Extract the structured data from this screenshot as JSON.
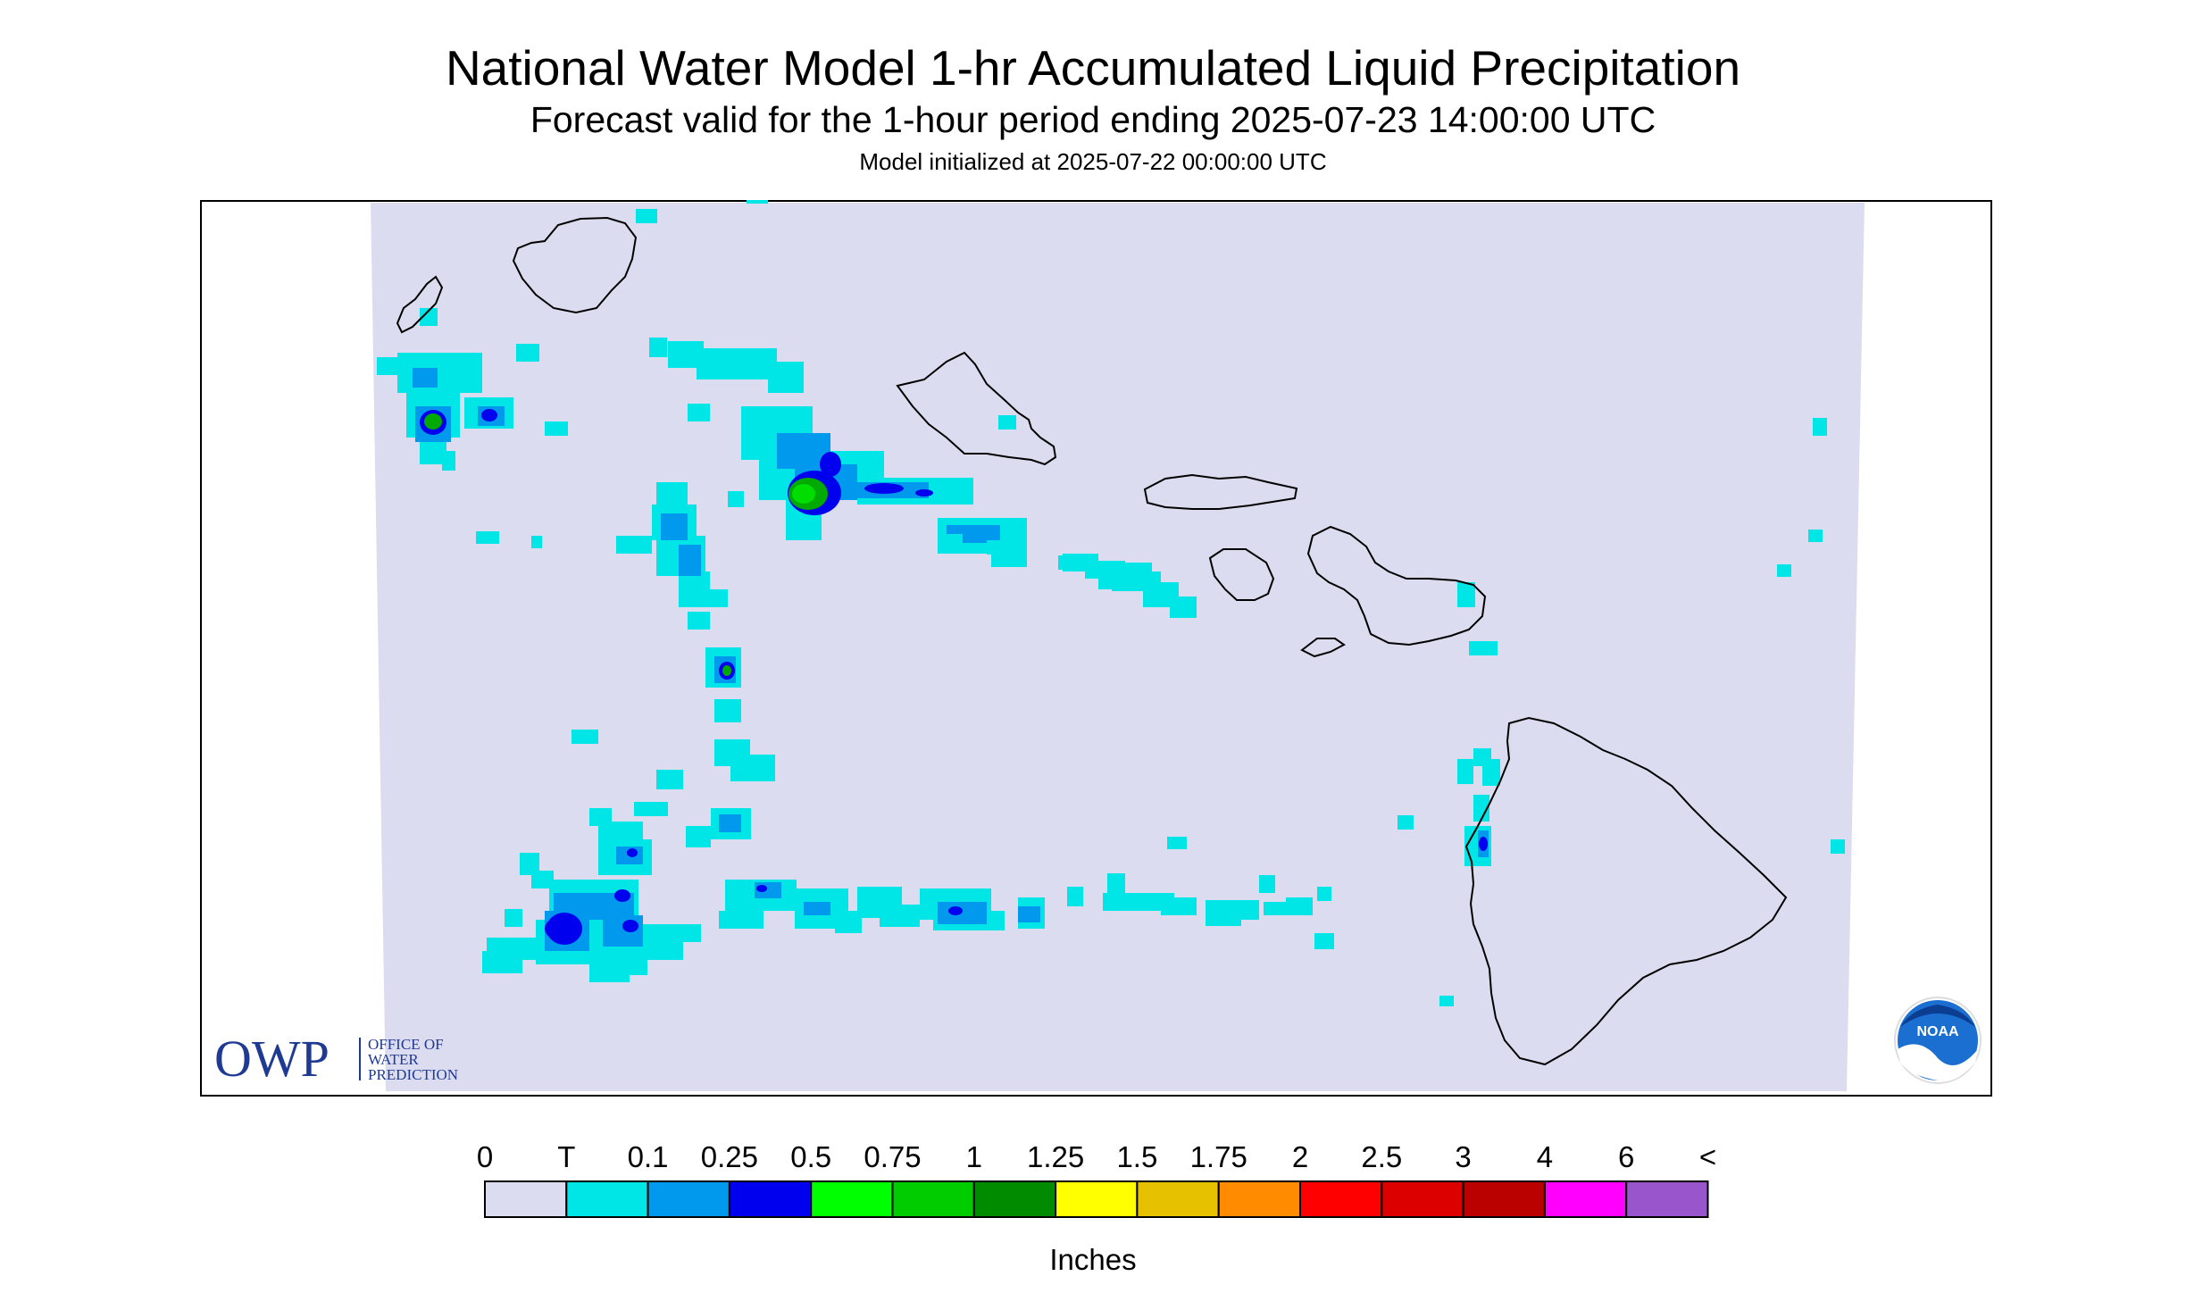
{
  "header": {
    "title": "National Water Model 1-hr Accumulated Liquid Precipitation",
    "subtitle": "Forecast valid for the 1-hour period ending 2025-07-23 14:00:00 UTC",
    "init": "Model initialized at 2025-07-22 00:00:00 UTC"
  },
  "map": {
    "region": "Hawaiian Islands",
    "background_color": "#dcdcf0",
    "coastline_color": "#000000"
  },
  "logos": {
    "owp_letters": "OWP",
    "owp_text": [
      "OFFICE OF",
      "WATER",
      "PREDICTION"
    ],
    "noaa_text": "NOAA"
  },
  "legend": {
    "labels": [
      "0",
      "T",
      "0.1",
      "0.25",
      "0.5",
      "0.75",
      "1",
      "1.25",
      "1.5",
      "1.75",
      "2",
      "2.5",
      "3",
      "4",
      "6",
      "<"
    ],
    "colors": [
      "#dcdcf0",
      "#00e5e5",
      "#0099ee",
      "#0000ee",
      "#00ff00",
      "#00cc00",
      "#008b00",
      "#ffff00",
      "#e5c100",
      "#ff8c00",
      "#ff0000",
      "#dd0000",
      "#bb0000",
      "#ff00ff",
      "#9955cc"
    ],
    "unit": "Inches"
  }
}
